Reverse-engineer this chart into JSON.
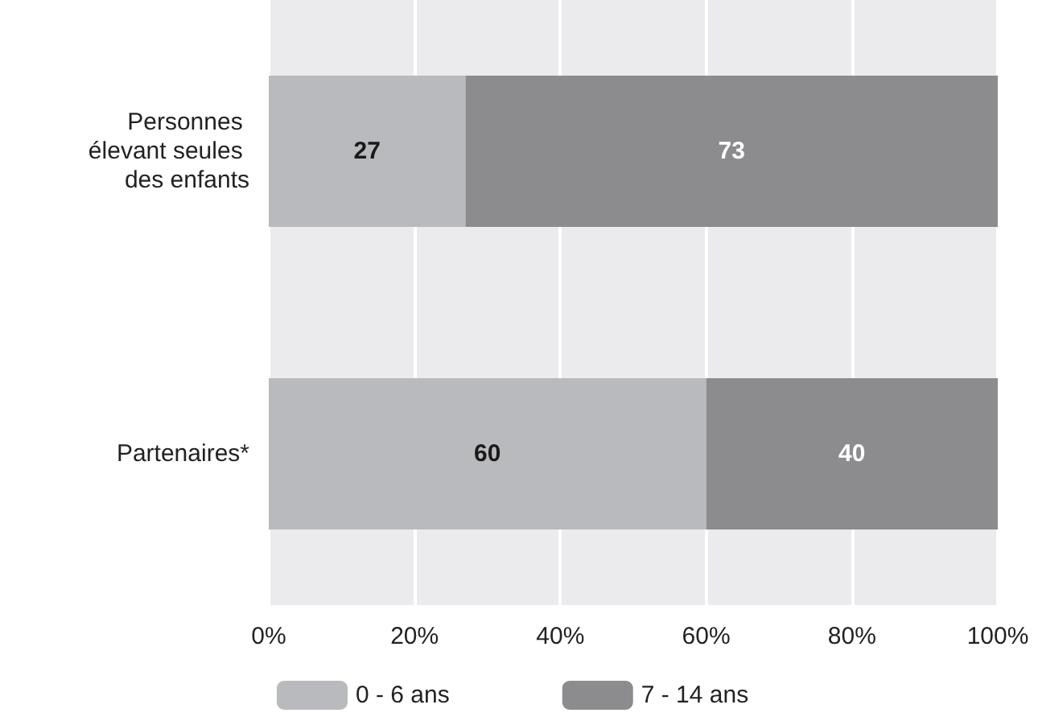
{
  "chart_data": {
    "type": "bar",
    "orientation": "horizontal",
    "stacked": true,
    "categories": [
      "Personnes élevant seules des enfants",
      "Partenaires*"
    ],
    "series": [
      {
        "name": "0 - 6 ans",
        "color": "#b9babd",
        "values": [
          27,
          60
        ]
      },
      {
        "name": "7 - 14 ans",
        "color": "#8c8b8e",
        "values": [
          73,
          40
        ]
      }
    ],
    "xlim": [
      0,
      100
    ],
    "xticks": [
      {
        "value": 0,
        "label": "0%"
      },
      {
        "value": 20,
        "label": "20%"
      },
      {
        "value": 40,
        "label": "40%"
      },
      {
        "value": 60,
        "label": "60%"
      },
      {
        "value": 80,
        "label": "80%"
      },
      {
        "value": 100,
        "label": "100%"
      }
    ],
    "grid": "x",
    "legend": "bottom",
    "data_labels": true
  }
}
